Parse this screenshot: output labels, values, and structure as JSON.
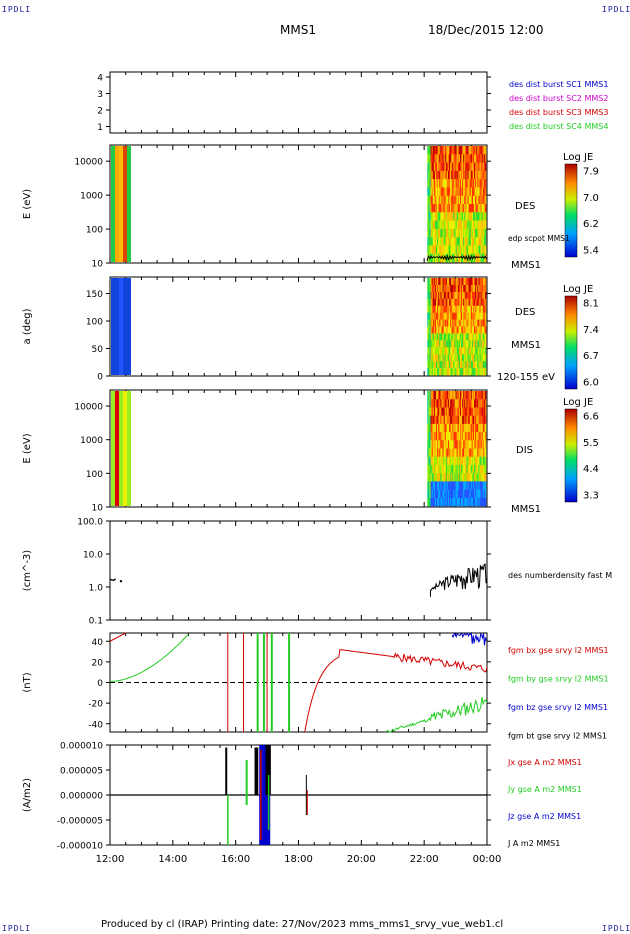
{
  "corners": {
    "top_left": "IPDLI",
    "top_right": "IPDLI",
    "bottom_left": "IPDLI",
    "bottom_right": "IPDLI"
  },
  "header": {
    "spacecraft": "MMS1",
    "datetime": "18/Dec/2015 12:00"
  },
  "footer": "Produced by cl (IRAP)   Printing date: 27/Nov/2023   mms_mms1_srvy_vue_web1.cl",
  "colors": {
    "red": "#d40000",
    "green": "#22cc22",
    "blue": "#0000cc",
    "black": "#000000",
    "magenta": "#cc00cc"
  },
  "chart_data": [
    {
      "type": "line",
      "panel": "burst-indicator",
      "x_ticks": [
        "12:00",
        "14:00",
        "16:00",
        "18:00",
        "20:00",
        "22:00",
        "00:00"
      ],
      "y_ticks": [
        "4",
        "3",
        "2",
        "1"
      ],
      "legend": [
        {
          "name": "des dist burst SC1 MMS1",
          "color": "#0000cc"
        },
        {
          "name": "des dist burst SC2 MMS2",
          "color": "#cc00cc"
        },
        {
          "name": "des dist burst SC3 MMS3",
          "color": "#d40000"
        },
        {
          "name": "des dist burst SC4 MMS4",
          "color": "#22cc22"
        }
      ]
    },
    {
      "type": "heatmap",
      "panel": "des-energy-spectrogram",
      "ylabel": "E (eV)",
      "y_ticks": [
        "10000",
        "1000",
        "100",
        "10"
      ],
      "ylog": true,
      "ylim": [
        10,
        30000
      ],
      "labels": [
        "DES",
        "edp scpot MMS1",
        "MMS1"
      ],
      "colorbar": {
        "title": "Log JE",
        "ticks": [
          "7.9",
          "7.0",
          "6.2",
          "5.4"
        ],
        "range": [
          5.4,
          7.9
        ]
      }
    },
    {
      "type": "heatmap",
      "panel": "des-pitch-angle",
      "ylabel": "a (deg)",
      "y_ticks": [
        "150",
        "100",
        "50",
        "0"
      ],
      "ylim": [
        0,
        180
      ],
      "labels": [
        "DES",
        "MMS1",
        "120-155 eV"
      ],
      "colorbar": {
        "title": "Log JE",
        "ticks": [
          "8.1",
          "7.4",
          "6.7",
          "6.0"
        ],
        "range": [
          6.0,
          8.1
        ]
      }
    },
    {
      "type": "heatmap",
      "panel": "dis-energy-spectrogram",
      "ylabel": "E (eV)",
      "y_ticks": [
        "10000",
        "1000",
        "100",
        "10"
      ],
      "ylog": true,
      "ylim": [
        10,
        30000
      ],
      "labels": [
        "DIS",
        "MMS1"
      ],
      "colorbar": {
        "title": "Log JE",
        "ticks": [
          "6.6",
          "5.5",
          "4.4",
          "3.3"
        ],
        "range": [
          3.3,
          6.6
        ]
      }
    },
    {
      "type": "line",
      "panel": "number-density",
      "ylabel": "(cm^-3)",
      "y_ticks": [
        "100.0",
        "10.0",
        "1.0",
        "0.1"
      ],
      "ylog": true,
      "ylim": [
        0.1,
        100
      ],
      "legend": [
        {
          "name": "des numberdensity fast M",
          "color": "#000000"
        }
      ]
    },
    {
      "type": "line",
      "panel": "magnetic-field",
      "ylabel": "(nT)",
      "y_ticks": [
        "40",
        "20",
        "0",
        "-20",
        "-40"
      ],
      "ylim": [
        -48,
        48
      ],
      "legend": [
        {
          "name": "fgm bx gse srvy l2 MMS1",
          "color": "#d40000"
        },
        {
          "name": "fgm by gse srvy l2 MMS1",
          "color": "#22cc22"
        },
        {
          "name": "fgm bz gse srvy l2 MMS1",
          "color": "#0000cc"
        },
        {
          "name": "fgm bt gse srvy l2 MMS1",
          "color": "#000000"
        }
      ]
    },
    {
      "type": "line",
      "panel": "current-density",
      "ylabel": "(A/m2)",
      "y_ticks": [
        "0.000010",
        "0.000005",
        "0.000000",
        "-0.000005",
        "-0.000010"
      ],
      "ylim": [
        -1e-05,
        1e-05
      ],
      "x_ticks": [
        "12:00",
        "14:00",
        "16:00",
        "18:00",
        "20:00",
        "22:00",
        "00:00"
      ],
      "legend": [
        {
          "name": "Jx gse A m2 MMS1",
          "color": "#d40000"
        },
        {
          "name": "Jy gse A m2 MMS1",
          "color": "#22cc22"
        },
        {
          "name": "Jz gse A m2 MMS1",
          "color": "#0000cc"
        },
        {
          "name": "J A m2 MMS1",
          "color": "#000000"
        }
      ]
    }
  ]
}
